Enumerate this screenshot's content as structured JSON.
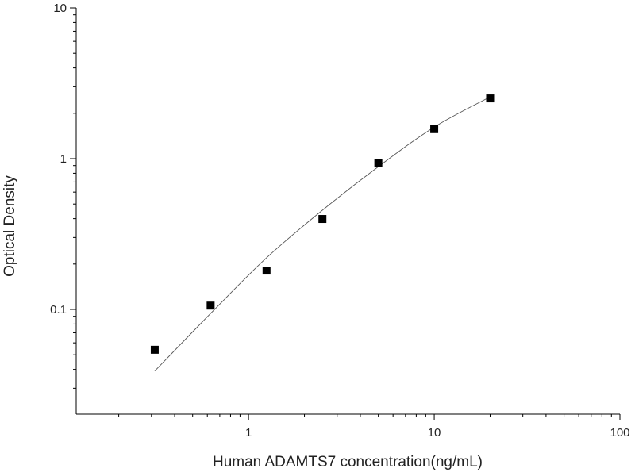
{
  "chart_data": {
    "type": "scatter",
    "log_x": true,
    "log_y": true,
    "xlabel": "Human ADAMTS7 concentration(ng/mL)",
    "ylabel": "Optical Density",
    "x": [
      0.3125,
      0.625,
      1.25,
      2.5,
      5,
      10,
      20
    ],
    "values": [
      0.054,
      0.106,
      0.181,
      0.398,
      0.94,
      1.57,
      2.51
    ],
    "color": "#000000",
    "fit_curve": {
      "x": [
        0.3125,
        0.625,
        1.25,
        2.5,
        5,
        10,
        20
      ],
      "values": [
        0.039,
        0.094,
        0.22,
        0.455,
        0.885,
        1.62,
        2.57
      ],
      "color": "#555555"
    },
    "xlim": [
      0.118,
      100
    ],
    "ylim": [
      0.0202,
      10
    ],
    "xticks": [
      1,
      10,
      100
    ],
    "yticks": [
      0.1,
      1,
      10
    ],
    "xminorticks": [
      0.2,
      0.3,
      0.4,
      0.5,
      0.6,
      0.7,
      0.8,
      0.9,
      2,
      3,
      4,
      5,
      6,
      7,
      8,
      9,
      20,
      30,
      40,
      50,
      60,
      70,
      80,
      90
    ],
    "yminorticks": [
      0.03,
      0.04,
      0.05,
      0.06,
      0.07,
      0.08,
      0.09,
      0.2,
      0.3,
      0.4,
      0.5,
      0.6,
      0.7,
      0.8,
      0.9,
      2,
      3,
      4,
      5,
      6,
      7,
      8,
      9
    ]
  }
}
